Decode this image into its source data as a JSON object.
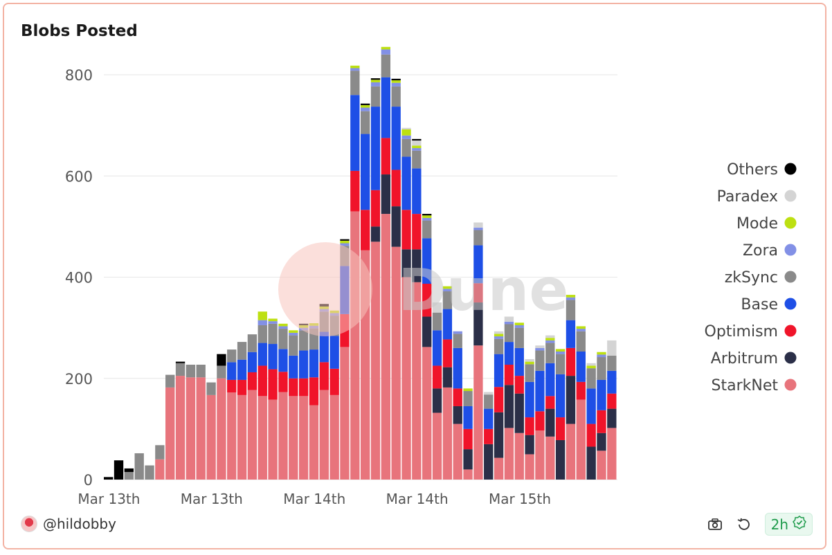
{
  "title": "Blobs Posted",
  "author": "@hildobby",
  "refresh_label": "2h",
  "watermark": "Dune",
  "icons": {
    "camera": "camera-icon",
    "refresh": "refresh-icon",
    "check": "check-badge-icon"
  },
  "chart_data": {
    "type": "bar",
    "stacked": true,
    "ylim": [
      0,
      800
    ],
    "yticks": [
      0,
      200,
      400,
      600,
      800
    ],
    "grid": true,
    "legend_position": "right",
    "x_tick_labels": [
      {
        "index": 0,
        "label": "Mar 13th"
      },
      {
        "index": 10,
        "label": "Mar 13th"
      },
      {
        "index": 20,
        "label": "Mar 14th"
      },
      {
        "index": 30,
        "label": "Mar 14th"
      },
      {
        "index": 40,
        "label": "Mar 15th"
      }
    ],
    "series": [
      {
        "name": "StarkNet",
        "color": "#e8747c",
        "values": [
          0,
          0,
          0,
          0,
          0,
          40,
          182,
          205,
          202,
          202,
          167,
          200,
          172,
          167,
          177,
          165,
          158,
          173,
          165,
          165,
          147,
          177,
          167,
          262,
          530,
          453,
          470,
          525,
          460,
          400,
          390,
          262,
          132,
          182,
          110,
          20,
          265,
          0,
          43,
          102,
          92,
          50,
          97,
          85,
          0,
          110,
          158,
          0,
          57,
          102
        ]
      },
      {
        "name": "Arbitrum",
        "color": "#2b2f48",
        "values": [
          0,
          0,
          0,
          0,
          0,
          0,
          0,
          0,
          0,
          0,
          0,
          0,
          0,
          0,
          0,
          0,
          0,
          0,
          0,
          0,
          0,
          0,
          0,
          0,
          0,
          0,
          30,
          78,
          80,
          55,
          65,
          60,
          48,
          40,
          35,
          40,
          85,
          70,
          90,
          85,
          78,
          38,
          0,
          55,
          78,
          95,
          0,
          65,
          35,
          38
        ]
      },
      {
        "name": "Optimism",
        "color": "#f0142a",
        "values": [
          0,
          0,
          0,
          0,
          0,
          0,
          0,
          0,
          0,
          0,
          0,
          0,
          25,
          30,
          35,
          60,
          60,
          40,
          35,
          35,
          55,
          55,
          52,
          65,
          80,
          80,
          72,
          72,
          72,
          78,
          70,
          65,
          45,
          55,
          35,
          40,
          38,
          30,
          50,
          40,
          35,
          35,
          38,
          25,
          45,
          55,
          35,
          45,
          45,
          30
        ]
      },
      {
        "name": "Base",
        "color": "#1e4fe6",
        "values": [
          0,
          0,
          0,
          0,
          0,
          0,
          0,
          0,
          0,
          0,
          0,
          0,
          35,
          40,
          40,
          45,
          50,
          45,
          45,
          55,
          55,
          60,
          65,
          95,
          150,
          150,
          165,
          120,
          125,
          105,
          90,
          90,
          70,
          60,
          80,
          45,
          75,
          40,
          65,
          45,
          55,
          70,
          80,
          65,
          85,
          55,
          60,
          70,
          60,
          45
        ]
      },
      {
        "name": "zkSync",
        "color": "#8a8a8a",
        "values": [
          0,
          0,
          15,
          52,
          28,
          28,
          25,
          25,
          25,
          25,
          25,
          25,
          25,
          35,
          35,
          35,
          40,
          40,
          40,
          40,
          42,
          40,
          40,
          40,
          48,
          45,
          40,
          45,
          40,
          35,
          35,
          35,
          35,
          35,
          28,
          30,
          30,
          28,
          30,
          35,
          40,
          35,
          40,
          40,
          40,
          40,
          40,
          40,
          45,
          30
        ]
      },
      {
        "name": "Zora",
        "color": "#8290e6",
        "values": [
          0,
          0,
          0,
          0,
          0,
          0,
          0,
          0,
          0,
          0,
          0,
          0,
          0,
          0,
          0,
          10,
          5,
          5,
          5,
          5,
          5,
          5,
          5,
          5,
          5,
          7,
          8,
          10,
          7,
          7,
          5,
          5,
          0,
          5,
          5,
          0,
          5,
          0,
          5,
          5,
          5,
          0,
          5,
          5,
          5,
          5,
          5,
          0,
          5,
          0
        ]
      },
      {
        "name": "Mode",
        "color": "#bde011",
        "values": [
          0,
          0,
          0,
          0,
          0,
          0,
          0,
          0,
          0,
          0,
          0,
          0,
          0,
          0,
          0,
          17,
          5,
          5,
          5,
          5,
          5,
          5,
          5,
          5,
          5,
          5,
          5,
          5,
          5,
          12,
          5,
          5,
          0,
          5,
          0,
          5,
          0,
          0,
          5,
          0,
          5,
          5,
          0,
          5,
          5,
          5,
          5,
          5,
          5,
          0
        ]
      },
      {
        "name": "Paradex",
        "color": "#d4d4d4",
        "values": [
          0,
          0,
          0,
          0,
          0,
          0,
          0,
          0,
          0,
          0,
          0,
          0,
          0,
          0,
          0,
          0,
          0,
          0,
          0,
          0,
          0,
          0,
          0,
          0,
          0,
          0,
          0,
          0,
          0,
          3,
          10,
          0,
          20,
          0,
          0,
          0,
          10,
          5,
          5,
          10,
          0,
          5,
          5,
          5,
          0,
          0,
          0,
          5,
          0,
          30
        ]
      },
      {
        "name": "Others",
        "color": "#000000",
        "values": [
          5,
          38,
          7,
          0,
          0,
          0,
          0,
          3,
          0,
          0,
          0,
          23,
          0,
          0,
          0,
          0,
          0,
          0,
          0,
          3,
          0,
          5,
          0,
          3,
          0,
          3,
          3,
          0,
          3,
          0,
          3,
          3,
          0,
          0,
          0,
          0,
          0,
          0,
          0,
          0,
          0,
          0,
          0,
          0,
          0,
          0,
          0,
          0,
          0,
          0
        ]
      }
    ]
  }
}
